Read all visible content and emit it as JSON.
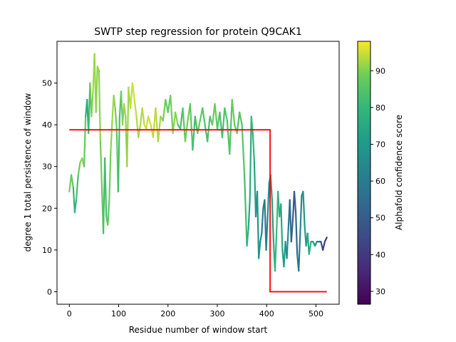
{
  "chart_data": {
    "type": "line",
    "title": "SWTP step regression for protein Q9CAK1",
    "xlabel": "Residue number of window start",
    "ylabel": "degree 1 total persistence of window",
    "xlim": [
      -25,
      547
    ],
    "ylim": [
      -3,
      60
    ],
    "xticks": [
      0,
      100,
      200,
      300,
      400,
      500
    ],
    "yticks": [
      0,
      10,
      20,
      30,
      40,
      50
    ],
    "grid": false,
    "colorbar": {
      "label": "Alphafold confidence score",
      "range": [
        26.5,
        98
      ],
      "ticks": [
        30,
        40,
        50,
        60,
        70,
        80,
        90
      ],
      "colormap": "viridis"
    },
    "series": [
      {
        "kind": "persistence",
        "x": [
          0,
          4,
          8,
          11,
          14,
          18,
          22,
          26,
          30,
          33,
          36,
          39,
          42,
          45,
          48,
          51,
          54,
          57,
          60,
          63,
          66,
          69,
          72,
          75,
          78,
          81,
          84,
          87,
          90,
          93,
          96,
          99,
          102,
          105,
          108,
          111,
          114,
          117,
          120,
          124,
          128,
          132,
          136,
          140,
          144,
          148,
          152,
          156,
          160,
          165,
          170,
          175,
          180,
          185,
          190,
          195,
          200,
          205,
          210,
          215,
          220,
          225,
          230,
          235,
          240,
          245,
          250,
          255,
          260,
          265,
          270,
          275,
          280,
          285,
          290,
          295,
          300,
          305,
          310,
          315,
          320,
          325,
          330,
          335,
          340,
          345,
          350,
          355,
          360,
          363,
          366,
          369,
          372,
          375,
          378,
          381,
          384,
          387,
          390,
          393,
          396,
          399,
          402,
          405,
          408,
          411,
          414,
          417,
          420,
          423,
          426,
          429,
          432,
          435,
          438,
          441,
          444,
          447,
          450,
          453,
          456,
          459,
          462,
          465,
          468,
          471,
          474,
          477,
          480,
          483,
          486,
          490,
          494,
          498,
          502,
          506,
          510,
          514,
          518,
          522
        ],
        "y": [
          24,
          28,
          25,
          19,
          22,
          28,
          31,
          32,
          30,
          42,
          46,
          38,
          50,
          42,
          48,
          57,
          43,
          54,
          53,
          36,
          25,
          14,
          32,
          18,
          16,
          22,
          34,
          41,
          47,
          44,
          39,
          24,
          42,
          48,
          40,
          45,
          42,
          30,
          49,
          44,
          50,
          46,
          42,
          37,
          40,
          44,
          40,
          39,
          42,
          40,
          37,
          44,
          36,
          42,
          41,
          46,
          43,
          47,
          38,
          43,
          40,
          39,
          44,
          36,
          41,
          45,
          34,
          42,
          38,
          41,
          44,
          40,
          36,
          42,
          40,
          45,
          39,
          43,
          37,
          44,
          41,
          33,
          46,
          40,
          38,
          43,
          40,
          28,
          11,
          15,
          22,
          42,
          38,
          31,
          18,
          24,
          8,
          12,
          14,
          20,
          22,
          10,
          18,
          26,
          28,
          22,
          12,
          5,
          14,
          24,
          18,
          21,
          10,
          6,
          12,
          8,
          15,
          22,
          12,
          17,
          24,
          19,
          9,
          5,
          14,
          23,
          24,
          16,
          11,
          14,
          9,
          12,
          12,
          11,
          12,
          12,
          12,
          10,
          12,
          13
        ],
        "confidence": [
          88,
          90,
          82,
          78,
          80,
          86,
          90,
          92,
          90,
          84,
          72,
          78,
          85,
          90,
          92,
          93,
          90,
          92,
          92,
          90,
          88,
          86,
          80,
          84,
          86,
          88,
          90,
          92,
          92,
          90,
          88,
          85,
          80,
          88,
          90,
          92,
          92,
          90,
          93,
          94,
          95,
          95,
          94,
          92,
          92,
          93,
          95,
          95,
          95,
          95,
          94,
          94,
          93,
          92,
          90,
          88,
          86,
          88,
          90,
          92,
          88,
          80,
          84,
          88,
          90,
          88,
          84,
          80,
          86,
          88,
          86,
          84,
          82,
          85,
          88,
          88,
          86,
          84,
          82,
          84,
          86,
          82,
          88,
          88,
          86,
          84,
          86,
          84,
          80,
          76,
          72,
          80,
          82,
          76,
          70,
          66,
          70,
          66,
          62,
          58,
          58,
          60,
          64,
          68,
          72,
          70,
          74,
          78,
          82,
          80,
          78,
          76,
          74,
          72,
          70,
          68,
          62,
          56,
          52,
          50,
          48,
          50,
          54,
          58,
          62,
          64,
          66,
          70,
          72,
          74,
          76,
          78,
          74,
          70,
          64,
          58,
          50,
          42,
          40,
          38
        ]
      },
      {
        "kind": "step-regression",
        "color": "#ff0000",
        "x": [
          0,
          407,
          407,
          522
        ],
        "y": [
          38.8,
          38.8,
          0,
          0
        ]
      }
    ]
  }
}
